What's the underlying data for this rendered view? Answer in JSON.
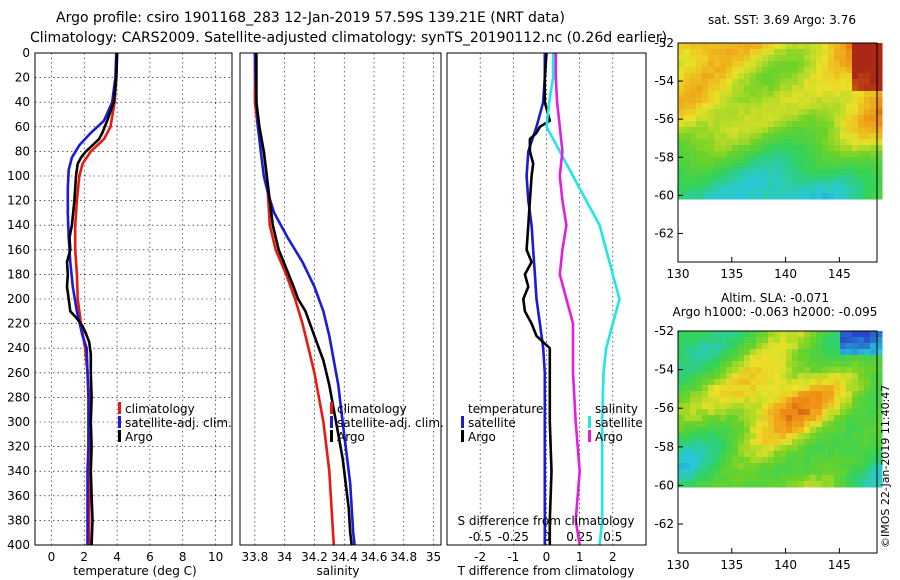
{
  "header": {
    "line1": "Argo profile: csiro 1901168_283 12-Jan-2019 57.59S 139.21E (NRT data)",
    "line2": "Climatology: CARS2009. Satellite-adjusted climatology: synTS_20190112.nc (0.26d earlier)"
  },
  "colors": {
    "climatology": "#e8190f",
    "satellite": "#1a1ad8",
    "argo": "#000000",
    "sal_satellite": "#21e6e6",
    "sal_argo": "#e21ee2"
  },
  "chart_data": [
    {
      "type": "line",
      "id": "temperature",
      "title": "",
      "xlabel": "temperature (deg C)",
      "ylabel": "",
      "xlim": [
        -1,
        11
      ],
      "ylim": [
        400,
        0
      ],
      "xticks": [
        0,
        2,
        4,
        6,
        8,
        10
      ],
      "yticks": [
        0,
        20,
        40,
        60,
        80,
        100,
        120,
        140,
        160,
        180,
        200,
        220,
        240,
        260,
        280,
        300,
        320,
        340,
        360,
        380,
        400
      ],
      "legend": [
        "climatology",
        "satellite-adj. clim.",
        "Argo"
      ],
      "series": [
        {
          "name": "climatology",
          "color": "#e8190f",
          "depth": [
            0,
            20,
            40,
            60,
            70,
            80,
            90,
            100,
            120,
            140,
            160,
            180,
            200,
            220,
            240,
            260,
            280,
            300,
            320,
            340,
            360,
            380,
            400
          ],
          "values": [
            4.0,
            3.95,
            3.85,
            3.6,
            3.2,
            2.4,
            1.9,
            1.7,
            1.55,
            1.45,
            1.45,
            1.55,
            1.6,
            1.8,
            2.05,
            2.2,
            2.3,
            2.35,
            2.35,
            2.35,
            2.3,
            2.3,
            2.3
          ]
        },
        {
          "name": "satellite-adj. clim.",
          "color": "#1a1ad8",
          "depth": [
            0,
            20,
            40,
            55,
            65,
            75,
            85,
            95,
            110,
            130,
            150,
            170,
            190,
            210,
            230,
            240,
            260,
            280,
            300,
            320,
            340,
            360,
            380,
            400
          ],
          "values": [
            3.95,
            3.9,
            3.7,
            3.2,
            2.4,
            1.7,
            1.25,
            1.05,
            1.0,
            1.0,
            1.05,
            1.15,
            1.3,
            1.55,
            1.9,
            2.15,
            2.2,
            2.25,
            2.25,
            2.25,
            2.2,
            2.2,
            2.2,
            2.2
          ]
        },
        {
          "name": "Argo",
          "color": "#000000",
          "depth": [
            0,
            20,
            40,
            55,
            65,
            70,
            75,
            80,
            85,
            90,
            100,
            120,
            140,
            150,
            160,
            170,
            180,
            190,
            200,
            210,
            215,
            222,
            228,
            235,
            245,
            260,
            280,
            300,
            320,
            340,
            360,
            380,
            400
          ],
          "values": [
            4.0,
            3.95,
            3.8,
            3.4,
            3.1,
            2.9,
            2.5,
            2.1,
            1.8,
            1.6,
            1.5,
            1.4,
            1.25,
            1.1,
            1.15,
            0.95,
            1.0,
            0.95,
            1.05,
            1.15,
            1.5,
            1.9,
            2.1,
            2.3,
            2.4,
            2.4,
            2.45,
            2.4,
            2.45,
            2.4,
            2.45,
            2.5,
            2.45
          ]
        }
      ]
    },
    {
      "type": "line",
      "id": "salinity",
      "xlabel": "salinity",
      "ylabel": "",
      "xlim": [
        33.7,
        35.05
      ],
      "ylim": [
        400,
        0
      ],
      "xticks": [
        33.8,
        34,
        34.2,
        34.4,
        34.6,
        34.8,
        35
      ],
      "xticklabels": [
        "33.8",
        "34",
        "34.2",
        "34.4",
        "34.6",
        "34.8",
        "35"
      ],
      "legend": [
        "climatology",
        "satellite-adj. clim.",
        "Argo"
      ],
      "series": [
        {
          "name": "climatology",
          "color": "#e8190f",
          "depth": [
            0,
            40,
            60,
            80,
            100,
            120,
            140,
            160,
            180,
            200,
            220,
            240,
            260,
            280,
            300,
            320,
            340,
            360,
            380,
            400
          ],
          "values": [
            33.8,
            33.8,
            33.82,
            33.86,
            33.88,
            33.89,
            33.9,
            33.94,
            34.01,
            34.07,
            34.12,
            34.16,
            34.2,
            34.23,
            34.26,
            34.28,
            34.3,
            34.31,
            34.32,
            34.33
          ]
        },
        {
          "name": "satellite-adj. clim.",
          "color": "#1a1ad8",
          "depth": [
            0,
            40,
            60,
            80,
            100,
            115,
            130,
            150,
            170,
            190,
            210,
            230,
            250,
            270,
            290,
            310,
            330,
            350,
            370,
            390,
            400
          ],
          "values": [
            33.8,
            33.81,
            33.82,
            33.84,
            33.86,
            33.89,
            33.93,
            34.02,
            34.12,
            34.2,
            34.26,
            34.3,
            34.33,
            34.36,
            34.38,
            34.4,
            34.42,
            34.44,
            34.45,
            34.46,
            34.47
          ]
        },
        {
          "name": "Argo",
          "color": "#000000",
          "depth": [
            0,
            40,
            60,
            80,
            100,
            120,
            140,
            160,
            175,
            190,
            200,
            210,
            230,
            250,
            270,
            290,
            310,
            330,
            350,
            370,
            390,
            400
          ],
          "values": [
            33.81,
            33.81,
            33.83,
            33.86,
            33.88,
            33.9,
            33.92,
            33.96,
            34.01,
            34.06,
            34.09,
            34.14,
            34.2,
            34.26,
            34.3,
            34.33,
            34.36,
            34.39,
            34.41,
            34.43,
            34.44,
            34.45
          ]
        }
      ]
    },
    {
      "type": "line",
      "id": "difference",
      "xlabel": "T difference from climatology",
      "top_label": "S difference from climatology",
      "ylabel": "",
      "xlim": [
        -3,
        3
      ],
      "ylim": [
        400,
        0
      ],
      "xticks": [
        -2,
        -1,
        0,
        1,
        2
      ],
      "s_ticks": [
        -0.5,
        -0.25,
        0,
        0.25,
        0.5
      ],
      "s_ticklabels": [
        "-0.5",
        "-0.25",
        "0",
        "0.25",
        "0.5"
      ],
      "legend_temperature_title": "temperature",
      "legend_salinity_title": "salinity",
      "legend_temperature": [
        "satellite",
        "Argo"
      ],
      "legend_salinity": [
        "satellite",
        "Argo"
      ],
      "series": [
        {
          "name": "T satellite",
          "color": "#1a1ad8",
          "depth": [
            0,
            20,
            40,
            60,
            80,
            100,
            120,
            140,
            160,
            180,
            200,
            220,
            240,
            260,
            300,
            340,
            380,
            400
          ],
          "values": [
            -0.05,
            -0.05,
            -0.1,
            -0.3,
            -0.55,
            -0.6,
            -0.55,
            -0.45,
            -0.4,
            -0.35,
            -0.3,
            -0.2,
            -0.1,
            -0.05,
            -0.05,
            -0.05,
            -0.05,
            -0.05
          ]
        },
        {
          "name": "T Argo",
          "color": "#000000",
          "depth": [
            0,
            20,
            40,
            55,
            60,
            65,
            70,
            80,
            90,
            100,
            120,
            140,
            160,
            170,
            180,
            190,
            200,
            210,
            220,
            230,
            240,
            260,
            300,
            340,
            380,
            400
          ],
          "values": [
            0.0,
            -0.05,
            -0.05,
            0.1,
            -0.2,
            -0.3,
            -0.5,
            -0.5,
            -0.4,
            -0.45,
            -0.5,
            -0.55,
            -0.6,
            -0.45,
            -0.65,
            -0.55,
            -0.7,
            -0.65,
            -0.45,
            -0.3,
            0.1,
            0.1,
            0.1,
            0.15,
            0.1,
            0.1
          ]
        },
        {
          "name": "S satellite",
          "color": "#21e6e6",
          "depth": [
            0,
            20,
            40,
            60,
            80,
            100,
            120,
            140,
            160,
            180,
            200,
            220,
            240,
            260,
            300,
            340,
            380,
            400
          ],
          "values": [
            0.05,
            0.05,
            0.02,
            0.0,
            0.1,
            0.2,
            0.3,
            0.4,
            0.45,
            0.5,
            0.55,
            0.5,
            0.45,
            0.43,
            0.42,
            0.42,
            0.42,
            0.4
          ]
        },
        {
          "name": "S Argo",
          "color": "#e21ee2",
          "depth": [
            0,
            20,
            40,
            60,
            80,
            100,
            120,
            140,
            160,
            180,
            200,
            220,
            240,
            260,
            300,
            340,
            380,
            400
          ],
          "values": [
            0.07,
            0.07,
            0.08,
            0.1,
            0.12,
            0.1,
            0.12,
            0.15,
            0.12,
            0.1,
            0.15,
            0.2,
            0.2,
            0.2,
            0.22,
            0.25,
            0.22,
            0.25
          ]
        }
      ]
    },
    {
      "type": "heatmap",
      "id": "sst_map",
      "title": "sat. SST: 3.69 Argo: 3.76",
      "xlim": [
        130,
        148.5
      ],
      "ylim": [
        -63.5,
        -52
      ],
      "data_ylim": [
        -60,
        -52
      ],
      "xticks": [
        130,
        135,
        140,
        145
      ],
      "yticks": [
        -52,
        -54,
        -56,
        -58,
        -60,
        -62
      ]
    },
    {
      "type": "heatmap",
      "id": "sla_map",
      "title": "Altim. SLA: -0.071",
      "subtitle": "Argo h1000: -0.063 h2000: -0.095",
      "xlim": [
        130,
        148.5
      ],
      "ylim": [
        -63.5,
        -52
      ],
      "data_ylim": [
        -60,
        -52
      ],
      "xticks": [
        130,
        135,
        140,
        145
      ],
      "yticks": [
        -52,
        -54,
        -56,
        -58,
        -60,
        -62
      ]
    }
  ],
  "watermark": "©IMOS 22-Jan-2019 11:40:47"
}
